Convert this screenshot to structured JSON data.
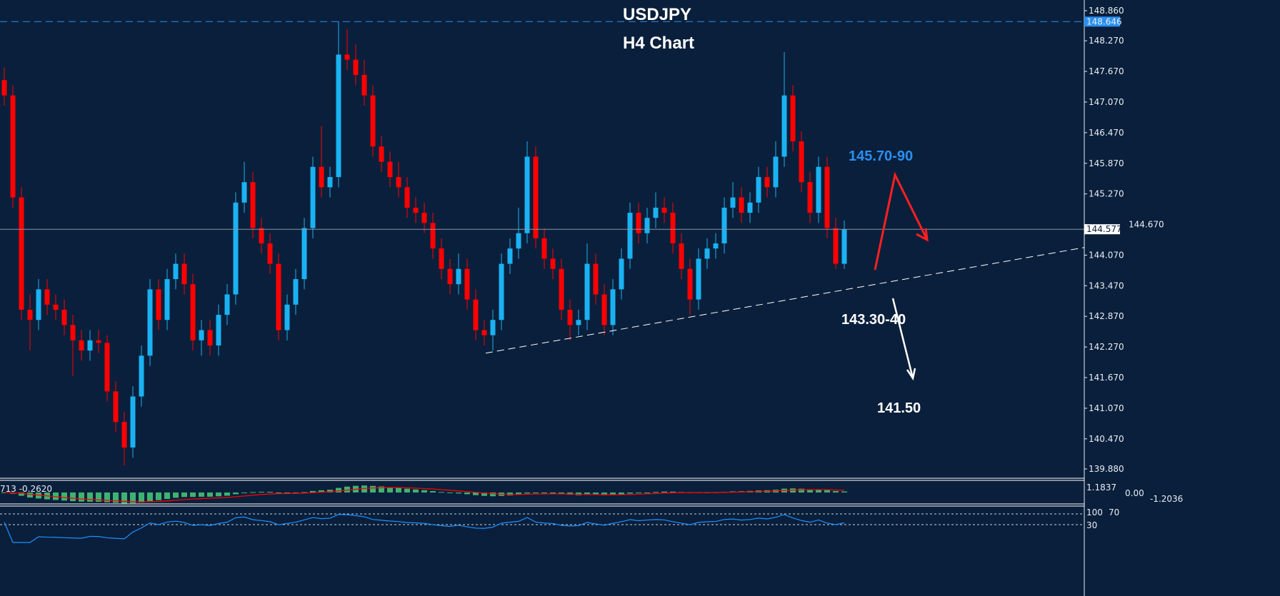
{
  "chart_data": {
    "type": "candlestick",
    "title": "USDJPY",
    "subtitle": "H4 Chart",
    "colors": {
      "background": "#0a1f3b",
      "bull": "#1ab2f2",
      "bear": "#ff0000",
      "axis": "#e8eef5",
      "macd_hist": "#3cb371",
      "macd_signal": "#ff0000",
      "rsi_line": "#1e90ff"
    },
    "y_axis": {
      "range": [
        139.65,
        149.0
      ],
      "ticks": [
        "148.860",
        "148.270",
        "147.670",
        "147.070",
        "146.470",
        "145.870",
        "145.270",
        "144.670",
        "144.070",
        "143.470",
        "142.870",
        "142.270",
        "141.670",
        "141.070",
        "140.470",
        "139.880"
      ]
    },
    "reference_lines": {
      "high_line": "148.646",
      "current_price": "144.577"
    },
    "trendline": {
      "style": "dashed",
      "from_price": 142.15,
      "to_price": 144.22
    },
    "ohlc": [
      [
        147.5,
        147.75,
        147.0,
        147.2
      ],
      [
        147.2,
        147.4,
        145.0,
        145.2
      ],
      [
        145.2,
        145.4,
        142.8,
        143.0
      ],
      [
        143.0,
        143.3,
        142.2,
        142.8
      ],
      [
        142.8,
        143.6,
        142.6,
        143.4
      ],
      [
        143.4,
        143.6,
        142.9,
        143.1
      ],
      [
        143.1,
        143.3,
        142.8,
        143.0
      ],
      [
        143.0,
        143.2,
        142.5,
        142.7
      ],
      [
        142.7,
        142.9,
        141.7,
        142.4
      ],
      [
        142.4,
        142.6,
        142.0,
        142.2
      ],
      [
        142.2,
        142.6,
        142.0,
        142.4
      ],
      [
        142.4,
        142.6,
        142.15,
        142.35
      ],
      [
        142.35,
        142.5,
        141.2,
        141.4
      ],
      [
        141.4,
        141.6,
        140.6,
        140.8
      ],
      [
        140.8,
        141.0,
        139.95,
        140.3
      ],
      [
        140.3,
        141.5,
        140.1,
        141.3
      ],
      [
        141.3,
        142.3,
        141.1,
        142.1
      ],
      [
        142.1,
        143.6,
        141.9,
        143.4
      ],
      [
        143.4,
        143.6,
        142.6,
        142.8
      ],
      [
        142.8,
        143.8,
        142.6,
        143.6
      ],
      [
        143.6,
        144.1,
        143.4,
        143.9
      ],
      [
        143.9,
        144.1,
        143.3,
        143.5
      ],
      [
        143.5,
        143.7,
        142.2,
        142.4
      ],
      [
        142.4,
        142.8,
        142.1,
        142.6
      ],
      [
        142.6,
        142.8,
        142.1,
        142.3
      ],
      [
        142.3,
        143.1,
        142.1,
        142.9
      ],
      [
        142.9,
        143.5,
        142.7,
        143.3
      ],
      [
        143.3,
        145.3,
        143.1,
        145.1
      ],
      [
        145.1,
        145.9,
        144.9,
        145.5
      ],
      [
        145.5,
        145.7,
        144.4,
        144.6
      ],
      [
        144.6,
        144.8,
        144.1,
        144.3
      ],
      [
        144.3,
        144.5,
        143.7,
        143.9
      ],
      [
        143.9,
        144.1,
        142.4,
        142.6
      ],
      [
        142.6,
        143.3,
        142.4,
        143.1
      ],
      [
        143.1,
        143.8,
        142.9,
        143.6
      ],
      [
        143.6,
        144.8,
        143.4,
        144.6
      ],
      [
        144.6,
        146.0,
        144.4,
        145.8
      ],
      [
        145.8,
        146.6,
        145.2,
        145.4
      ],
      [
        145.4,
        145.8,
        145.2,
        145.6
      ],
      [
        145.6,
        148.65,
        145.4,
        148.0
      ],
      [
        148.0,
        148.5,
        147.7,
        147.9
      ],
      [
        147.9,
        148.2,
        147.4,
        147.6
      ],
      [
        147.6,
        147.9,
        147.0,
        147.2
      ],
      [
        147.2,
        147.4,
        146.0,
        146.2
      ],
      [
        146.2,
        146.4,
        145.7,
        145.9
      ],
      [
        145.9,
        146.1,
        145.4,
        145.6
      ],
      [
        145.6,
        145.9,
        145.2,
        145.4
      ],
      [
        145.4,
        145.6,
        144.8,
        145.0
      ],
      [
        145.0,
        145.2,
        144.7,
        144.9
      ],
      [
        144.9,
        145.1,
        144.5,
        144.7
      ],
      [
        144.7,
        144.9,
        144.0,
        144.2
      ],
      [
        144.2,
        144.4,
        143.6,
        143.8
      ],
      [
        143.8,
        144.0,
        143.3,
        143.5
      ],
      [
        143.5,
        144.1,
        143.3,
        143.8
      ],
      [
        143.8,
        144.0,
        143.0,
        143.2
      ],
      [
        143.2,
        143.4,
        142.4,
        142.6
      ],
      [
        142.6,
        142.8,
        142.3,
        142.5
      ],
      [
        142.5,
        143.0,
        142.2,
        142.8
      ],
      [
        142.8,
        144.1,
        142.6,
        143.9
      ],
      [
        143.9,
        144.4,
        143.7,
        144.2
      ],
      [
        144.2,
        145.0,
        144.0,
        144.5
      ],
      [
        144.5,
        146.3,
        144.3,
        146.0
      ],
      [
        146.0,
        146.2,
        144.2,
        144.4
      ],
      [
        144.4,
        144.6,
        143.8,
        144.0
      ],
      [
        144.0,
        144.2,
        143.6,
        143.8
      ],
      [
        143.8,
        144.0,
        142.8,
        143.0
      ],
      [
        143.0,
        143.2,
        142.4,
        142.7
      ],
      [
        142.7,
        143.0,
        142.5,
        142.8
      ],
      [
        142.8,
        144.3,
        142.6,
        143.9
      ],
      [
        143.9,
        144.1,
        143.1,
        143.3
      ],
      [
        143.3,
        143.5,
        142.5,
        142.7
      ],
      [
        142.7,
        143.6,
        142.5,
        143.4
      ],
      [
        143.4,
        144.2,
        143.2,
        144.0
      ],
      [
        144.0,
        145.1,
        143.8,
        144.9
      ],
      [
        144.9,
        145.1,
        144.3,
        144.5
      ],
      [
        144.5,
        145.0,
        144.3,
        144.8
      ],
      [
        144.8,
        145.3,
        144.6,
        145.0
      ],
      [
        145.0,
        145.2,
        144.7,
        144.9
      ],
      [
        144.9,
        145.1,
        144.1,
        144.3
      ],
      [
        144.3,
        144.5,
        143.6,
        143.8
      ],
      [
        143.8,
        144.0,
        142.9,
        143.2
      ],
      [
        143.2,
        144.2,
        143.0,
        144.0
      ],
      [
        144.0,
        144.4,
        143.8,
        144.2
      ],
      [
        144.2,
        144.5,
        144.0,
        144.3
      ],
      [
        144.3,
        145.2,
        144.1,
        145.0
      ],
      [
        145.0,
        145.5,
        144.8,
        145.2
      ],
      [
        145.2,
        145.4,
        144.7,
        144.9
      ],
      [
        144.9,
        145.3,
        144.7,
        145.1
      ],
      [
        145.1,
        145.8,
        144.9,
        145.6
      ],
      [
        145.6,
        145.8,
        145.2,
        145.4
      ],
      [
        145.4,
        146.3,
        145.2,
        146.0
      ],
      [
        146.0,
        148.05,
        145.8,
        147.2
      ],
      [
        147.2,
        147.4,
        146.1,
        146.3
      ],
      [
        146.3,
        146.5,
        145.3,
        145.5
      ],
      [
        145.5,
        145.7,
        144.7,
        144.9
      ],
      [
        144.9,
        146.0,
        144.7,
        145.8
      ],
      [
        145.8,
        146.0,
        144.4,
        144.6
      ],
      [
        144.6,
        144.8,
        143.8,
        143.9
      ],
      [
        143.9,
        144.75,
        143.8,
        144.58
      ]
    ],
    "annotations": {
      "resistance": "145.70-90",
      "support": "143.30-40",
      "target": "141.50"
    }
  },
  "macd_panel": {
    "readout": "713 -0.2620",
    "ticks": [
      "1.1837",
      "0.00",
      "-1.2036"
    ]
  },
  "rsi_panel": {
    "ticks": [
      "100",
      "70",
      "30"
    ]
  }
}
